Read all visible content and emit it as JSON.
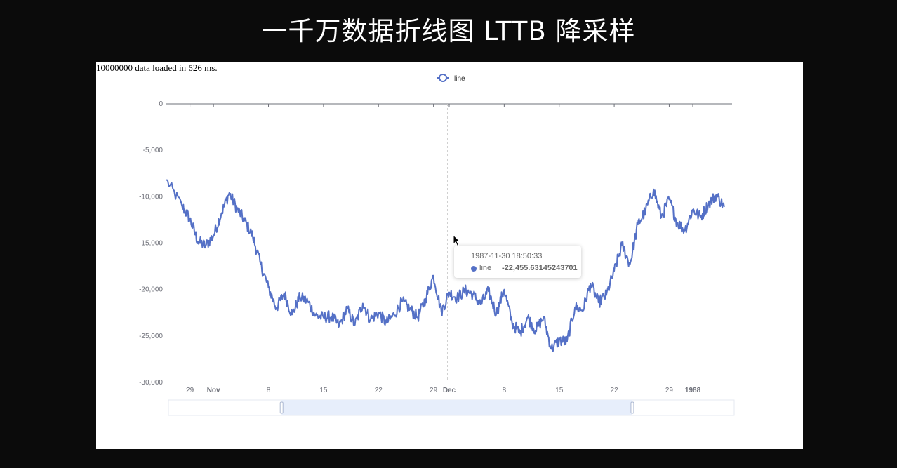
{
  "banner": {
    "title": "一千万数据折线图 LTTB 降采样"
  },
  "status": {
    "text": "10000000 data loaded in 526 ms."
  },
  "colors": {
    "series": "#5470c6",
    "axis": "#6e7079",
    "zoom_fill": "#e7eefb"
  },
  "tooltip": {
    "time": "1987-11-30 18:50:33",
    "series_name": "line",
    "value": "-22,455.63145243701"
  },
  "chart_data": {
    "type": "line",
    "legend": [
      "line"
    ],
    "legend_position": "top-center",
    "ylim": [
      -30000,
      0
    ],
    "y_ticks": [
      "0",
      "-5,000",
      "-10,000",
      "-15,000",
      "-20,000",
      "-25,000",
      "-30,000"
    ],
    "y_tick_values": [
      0,
      -5000,
      -10000,
      -15000,
      -20000,
      -25000,
      -30000
    ],
    "x_ticks": [
      {
        "label": "29",
        "date": "1987-10-29",
        "bold": false
      },
      {
        "label": "Nov",
        "date": "1987-11-01",
        "bold": true
      },
      {
        "label": "8",
        "date": "1987-11-08",
        "bold": false
      },
      {
        "label": "15",
        "date": "1987-11-15",
        "bold": false
      },
      {
        "label": "22",
        "date": "1987-11-22",
        "bold": false
      },
      {
        "label": "29",
        "date": "1987-11-29",
        "bold": false
      },
      {
        "label": "Dec",
        "date": "1987-12-01",
        "bold": true
      },
      {
        "label": "8",
        "date": "1987-12-08",
        "bold": false
      },
      {
        "label": "15",
        "date": "1987-12-15",
        "bold": false
      },
      {
        "label": "22",
        "date": "1987-12-22",
        "bold": false
      },
      {
        "label": "29",
        "date": "1987-12-29",
        "bold": false
      },
      {
        "label": "1988",
        "date": "1988-01-01",
        "bold": true
      }
    ],
    "x_range": [
      "1987-10-26",
      "1988-01-06"
    ],
    "grid": false,
    "data_zoom": {
      "start": 0.2,
      "end": 0.82
    },
    "pointer_date": "1987-11-30 18:50:33",
    "series": [
      {
        "name": "line",
        "x": [
          "1987-10-26",
          "1987-10-28",
          "1987-10-29",
          "1987-10-30",
          "1987-10-31",
          "1987-11-01",
          "1987-11-02",
          "1987-11-03",
          "1987-11-04",
          "1987-11-05",
          "1987-11-06",
          "1987-11-07",
          "1987-11-08",
          "1987-11-09",
          "1987-11-10",
          "1987-11-11",
          "1987-11-12",
          "1987-11-13",
          "1987-11-14",
          "1987-11-15",
          "1987-11-16",
          "1987-11-17",
          "1987-11-18",
          "1987-11-19",
          "1987-11-20",
          "1987-11-21",
          "1987-11-22",
          "1987-11-23",
          "1987-11-24",
          "1987-11-25",
          "1987-11-26",
          "1987-11-27",
          "1987-11-28",
          "1987-11-29",
          "1987-11-30",
          "1987-12-01",
          "1987-12-02",
          "1987-12-03",
          "1987-12-04",
          "1987-12-05",
          "1987-12-06",
          "1987-12-07",
          "1987-12-08",
          "1987-12-09",
          "1987-12-10",
          "1987-12-11",
          "1987-12-12",
          "1987-12-13",
          "1987-12-14",
          "1987-12-15",
          "1987-12-16",
          "1987-12-17",
          "1987-12-18",
          "1987-12-19",
          "1987-12-20",
          "1987-12-21",
          "1987-12-22",
          "1987-12-23",
          "1987-12-24",
          "1987-12-25",
          "1987-12-26",
          "1987-12-27",
          "1987-12-28",
          "1987-12-29",
          "1987-12-30",
          "1987-12-31",
          "1988-01-01",
          "1988-01-02",
          "1988-01-03",
          "1988-01-04",
          "1988-01-05"
        ],
        "values": [
          -8200,
          -11000,
          -12400,
          -14800,
          -15300,
          -14200,
          -11800,
          -9600,
          -11300,
          -12600,
          -14300,
          -17300,
          -19800,
          -22000,
          -20400,
          -22700,
          -20800,
          -21300,
          -22800,
          -23000,
          -22900,
          -23900,
          -22100,
          -23800,
          -21500,
          -23200,
          -22500,
          -23600,
          -22700,
          -21300,
          -22100,
          -23000,
          -21000,
          -18500,
          -22400,
          -20300,
          -20900,
          -20100,
          -20500,
          -21600,
          -20200,
          -22600,
          -20000,
          -23600,
          -24700,
          -23000,
          -24400,
          -23000,
          -26400,
          -25500,
          -25600,
          -21900,
          -22200,
          -19400,
          -21400,
          -20600,
          -18000,
          -15200,
          -17300,
          -13000,
          -11500,
          -9200,
          -12200,
          -10300,
          -12800,
          -13600,
          -11400,
          -12200,
          -10800,
          -9800,
          -11100
        ]
      }
    ]
  }
}
